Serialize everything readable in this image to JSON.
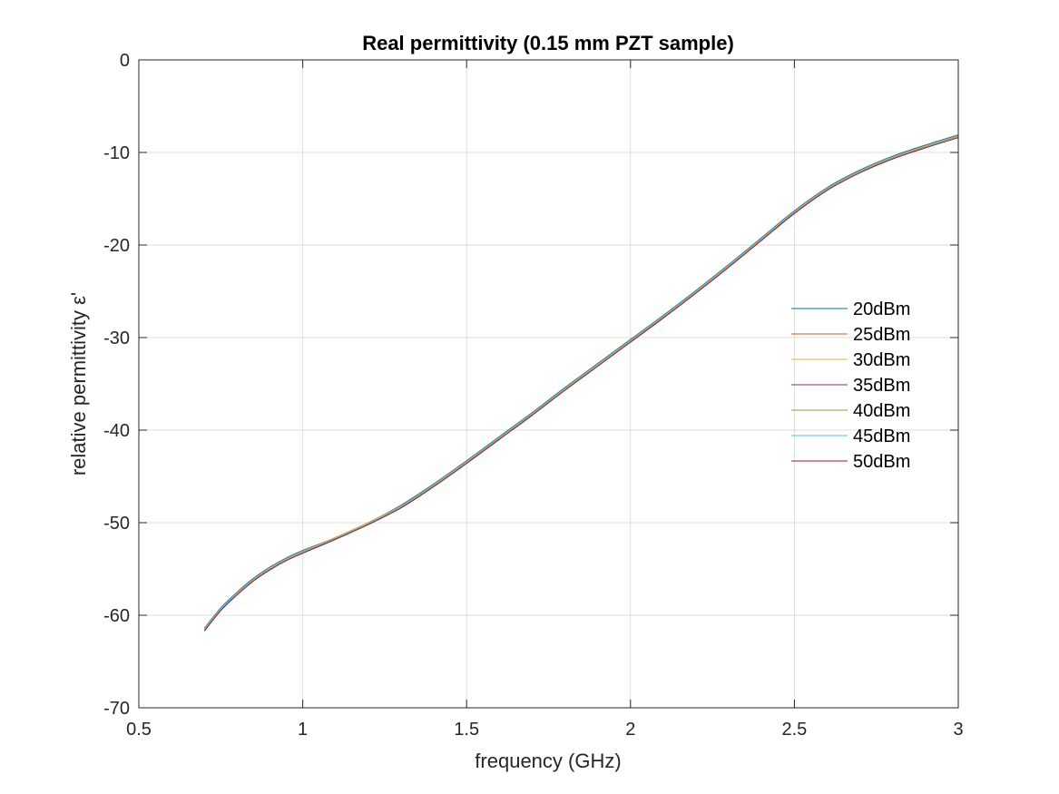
{
  "chart_data": {
    "type": "line",
    "title": "Real permittivity (0.15 mm PZT sample)",
    "xlabel": "frequency (GHz)",
    "ylabel": "relative permittivity ε'",
    "xlim": [
      0.5,
      3
    ],
    "ylim": [
      -70,
      0
    ],
    "xticks": [
      0.5,
      1,
      1.5,
      2,
      2.5,
      3
    ],
    "xtick_labels": [
      "0.5",
      "1",
      "1.5",
      "2",
      "2.5",
      "3"
    ],
    "yticks": [
      -70,
      -60,
      -50,
      -40,
      -30,
      -20,
      -10,
      0
    ],
    "ytick_labels": [
      "-70",
      "-60",
      "-50",
      "-40",
      "-30",
      "-20",
      "-10",
      "0"
    ],
    "grid": true,
    "legend_position": "right",
    "x": [
      0.7,
      0.75,
      0.8,
      0.85,
      0.9,
      0.95,
      1.0,
      1.1,
      1.2,
      1.3,
      1.4,
      1.5,
      1.6,
      1.7,
      1.8,
      1.9,
      2.0,
      2.1,
      2.2,
      2.3,
      2.4,
      2.5,
      2.6,
      2.7,
      2.8,
      2.9,
      3.0
    ],
    "series": [
      {
        "name": "20dBm",
        "color": "#0072BD",
        "values": [
          -61.4,
          -59.2,
          -57.5,
          -56.0,
          -54.8,
          -53.8,
          -53.0,
          -51.6,
          -50.0,
          -48.1,
          -45.8,
          -43.3,
          -40.7,
          -38.1,
          -35.4,
          -32.8,
          -30.2,
          -27.6,
          -24.9,
          -22.1,
          -19.2,
          -16.3,
          -13.8,
          -11.9,
          -10.4,
          -9.2,
          -8.1
        ]
      },
      {
        "name": "25dBm",
        "color": "#D95319",
        "values": [
          -61.5,
          -59.3,
          -57.6,
          -56.1,
          -54.9,
          -53.9,
          -53.1,
          -51.6,
          -50.0,
          -48.2,
          -45.9,
          -43.4,
          -40.8,
          -38.2,
          -35.5,
          -32.9,
          -30.3,
          -27.7,
          -25.0,
          -22.2,
          -19.3,
          -16.4,
          -13.9,
          -12.0,
          -10.5,
          -9.3,
          -8.2
        ]
      },
      {
        "name": "30dBm",
        "color": "#EDB120",
        "values": [
          -61.5,
          -59.3,
          -57.6,
          -56.1,
          -54.9,
          -53.9,
          -53.1,
          -51.6,
          -50.0,
          -48.2,
          -45.9,
          -43.4,
          -40.8,
          -38.2,
          -35.5,
          -32.9,
          -30.3,
          -27.7,
          -25.0,
          -22.2,
          -19.3,
          -16.4,
          -13.9,
          -12.0,
          -10.5,
          -9.3,
          -8.2
        ]
      },
      {
        "name": "35dBm",
        "color": "#7E2F8E",
        "values": [
          -61.6,
          -59.4,
          -57.7,
          -56.2,
          -55.0,
          -54.0,
          -53.2,
          -51.7,
          -50.1,
          -48.3,
          -46.0,
          -43.5,
          -40.9,
          -38.3,
          -35.6,
          -33.0,
          -30.4,
          -27.8,
          -25.1,
          -22.3,
          -19.4,
          -16.5,
          -14.0,
          -12.1,
          -10.6,
          -9.4,
          -8.3
        ]
      },
      {
        "name": "40dBm",
        "color": "#77AC30",
        "values": [
          -61.6,
          -59.4,
          -57.7,
          -56.2,
          -55.0,
          -54.0,
          -53.2,
          -51.7,
          -50.1,
          -48.3,
          -46.0,
          -43.5,
          -40.9,
          -38.3,
          -35.6,
          -33.0,
          -30.4,
          -27.8,
          -25.1,
          -22.3,
          -19.4,
          -16.5,
          -14.0,
          -12.1,
          -10.6,
          -9.4,
          -8.3
        ]
      },
      {
        "name": "45dBm",
        "color": "#4DBEEE",
        "values": [
          -61.6,
          -59.4,
          -57.7,
          -56.2,
          -55.0,
          -54.0,
          -53.2,
          -51.7,
          -50.1,
          -48.3,
          -46.0,
          -43.5,
          -40.9,
          -38.3,
          -35.6,
          -33.0,
          -30.4,
          -27.8,
          -25.1,
          -22.3,
          -19.4,
          -16.5,
          -14.0,
          -12.1,
          -10.6,
          -9.4,
          -8.3
        ]
      },
      {
        "name": "50dBm",
        "color": "#A2142F",
        "values": [
          -61.7,
          -59.5,
          -57.8,
          -56.3,
          -55.1,
          -54.1,
          -53.3,
          -51.8,
          -50.2,
          -48.4,
          -46.1,
          -43.6,
          -41.0,
          -38.4,
          -35.7,
          -33.1,
          -30.5,
          -27.9,
          -25.2,
          -22.4,
          -19.5,
          -16.6,
          -14.1,
          -12.2,
          -10.7,
          -9.5,
          -8.4
        ]
      }
    ]
  }
}
